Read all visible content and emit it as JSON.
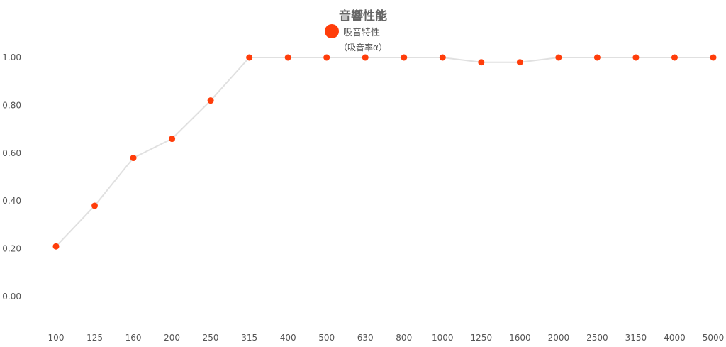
{
  "chart_data": {
    "type": "line",
    "title": "音響性能",
    "ylabel": "（吸音率α）",
    "categories": [
      "100",
      "125",
      "160",
      "200",
      "250",
      "315",
      "400",
      "500",
      "630",
      "800",
      "1000",
      "1250",
      "1600",
      "2000",
      "2500",
      "3150",
      "4000",
      "5000"
    ],
    "series": [
      {
        "name": "吸音特性",
        "values": [
          0.21,
          0.38,
          0.58,
          0.66,
          0.82,
          1.0,
          1.0,
          1.0,
          1.0,
          1.0,
          1.0,
          0.98,
          0.98,
          1.0,
          1.0,
          1.0,
          1.0,
          1.0
        ]
      }
    ],
    "yticks": [
      "0.00",
      "0.20",
      "0.40",
      "0.60",
      "0.80",
      "1.00"
    ],
    "ylim": [
      0,
      1
    ],
    "grid": false,
    "legend": "top-center",
    "colors": {
      "marker": "#ff3d0a",
      "line": "#e0e0e0",
      "tick_label": "#555555"
    }
  }
}
